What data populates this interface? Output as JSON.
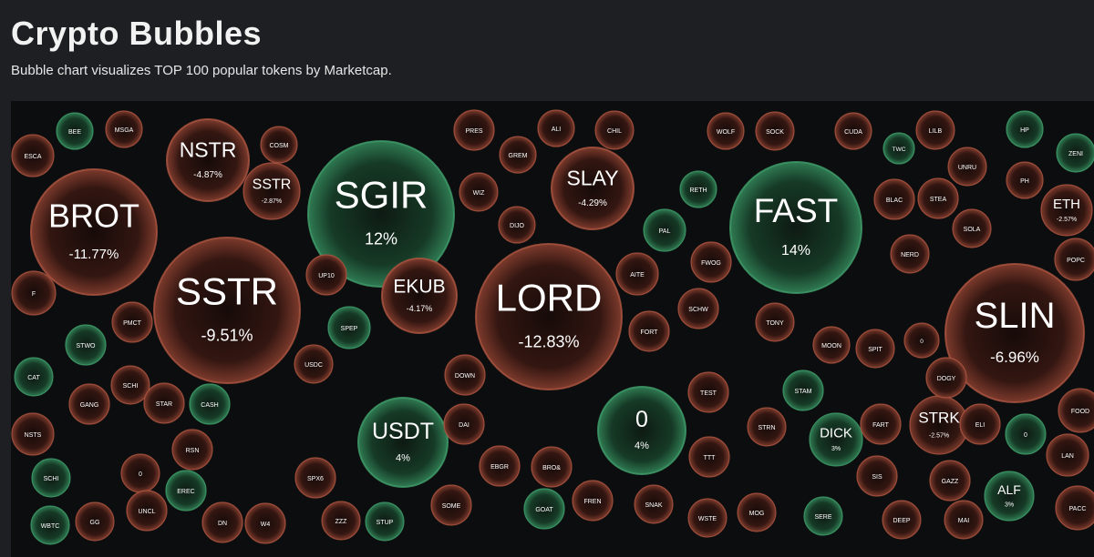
{
  "header": {
    "title": "Crypto Bubbles",
    "subtitle": "Bubble chart visualizes TOP 100 popular tokens by Marketcap."
  },
  "colors": {
    "up_fill": "#1f4a33",
    "up_stroke": "#3e9a68",
    "down_fill": "#3a1a15",
    "down_stroke": "#a8533f"
  },
  "chart_data": {
    "type": "bubble",
    "unit": "%",
    "tokens": [
      {
        "symbol": "BROT",
        "change": "-11.77%",
        "direction": "down"
      },
      {
        "symbol": "SSTR",
        "change": "-9.51%",
        "direction": "down"
      },
      {
        "symbol": "NSTR",
        "change": "-4.87%",
        "direction": "down"
      },
      {
        "symbol": "SSTR",
        "change": "-2.87%",
        "direction": "down"
      },
      {
        "symbol": "SGIR",
        "change": "12%",
        "direction": "up"
      },
      {
        "symbol": "EKUB",
        "change": "-4.17%",
        "direction": "down"
      },
      {
        "symbol": "LORD",
        "change": "-12.83%",
        "direction": "down"
      },
      {
        "symbol": "SLAY",
        "change": "-4.29%",
        "direction": "down"
      },
      {
        "symbol": "FAST",
        "change": "14%",
        "direction": "up"
      },
      {
        "symbol": "SLIN",
        "change": "-6.96%",
        "direction": "down"
      },
      {
        "symbol": "USDT",
        "change": "4%",
        "direction": "up"
      },
      {
        "symbol": "0",
        "change": "4%",
        "direction": "up"
      },
      {
        "symbol": "ETH",
        "change": "-2.57%",
        "direction": "down"
      },
      {
        "symbol": "STRK",
        "change": "-2.57%",
        "direction": "down"
      },
      {
        "symbol": "DICK",
        "change": "3%",
        "direction": "up"
      },
      {
        "symbol": "ALF",
        "change": "3%",
        "direction": "up"
      },
      {
        "symbol": "ESCA",
        "direction": "down"
      },
      {
        "symbol": "BEE",
        "direction": "up"
      },
      {
        "symbol": "MSGA",
        "direction": "down"
      },
      {
        "symbol": "COSM",
        "direction": "down"
      },
      {
        "symbol": "PRES",
        "direction": "down"
      },
      {
        "symbol": "ALI",
        "direction": "down"
      },
      {
        "symbol": "CHIL",
        "direction": "down"
      },
      {
        "symbol": "GREM",
        "direction": "down"
      },
      {
        "symbol": "WIZ",
        "direction": "down"
      },
      {
        "symbol": "DIJO",
        "direction": "down"
      },
      {
        "symbol": "WOLF",
        "direction": "down"
      },
      {
        "symbol": "SOCK",
        "direction": "down"
      },
      {
        "symbol": "CUDA",
        "direction": "down"
      },
      {
        "symbol": "TWC",
        "direction": "up"
      },
      {
        "symbol": "LILB",
        "direction": "down"
      },
      {
        "symbol": "HP",
        "direction": "up"
      },
      {
        "symbol": "ZENI",
        "direction": "up"
      },
      {
        "symbol": "UNRU",
        "direction": "down"
      },
      {
        "symbol": "PH",
        "direction": "down"
      },
      {
        "symbol": "RETH",
        "direction": "up"
      },
      {
        "symbol": "PAL",
        "direction": "up"
      },
      {
        "symbol": "BLAC",
        "direction": "down"
      },
      {
        "symbol": "STEA",
        "direction": "down"
      },
      {
        "symbol": "SOLA",
        "direction": "down"
      },
      {
        "symbol": "NERD",
        "direction": "down"
      },
      {
        "symbol": "POPC",
        "direction": "down"
      },
      {
        "symbol": "F",
        "direction": "down"
      },
      {
        "symbol": "UP10",
        "direction": "down"
      },
      {
        "symbol": "AITE",
        "direction": "down"
      },
      {
        "symbol": "FWOG",
        "direction": "down"
      },
      {
        "symbol": "SCHW",
        "direction": "down"
      },
      {
        "symbol": "TONY",
        "direction": "down"
      },
      {
        "symbol": "PMCT",
        "direction": "down"
      },
      {
        "symbol": "SPEP",
        "direction": "up"
      },
      {
        "symbol": "STWO",
        "direction": "up"
      },
      {
        "symbol": "USDC",
        "direction": "down"
      },
      {
        "symbol": "FORT",
        "direction": "down"
      },
      {
        "symbol": "MOON",
        "direction": "down"
      },
      {
        "symbol": "SPIT",
        "direction": "down"
      },
      {
        "symbol": "0",
        "direction": "down"
      },
      {
        "symbol": "CAT",
        "direction": "up"
      },
      {
        "symbol": "SCHI",
        "direction": "down"
      },
      {
        "symbol": "DOWN",
        "direction": "down"
      },
      {
        "symbol": "STAM",
        "direction": "up"
      },
      {
        "symbol": "DOGY",
        "direction": "down"
      },
      {
        "symbol": "GANG",
        "direction": "down"
      },
      {
        "symbol": "STAR",
        "direction": "down"
      },
      {
        "symbol": "CASH",
        "direction": "up"
      },
      {
        "symbol": "TEST",
        "direction": "down"
      },
      {
        "symbol": "FOOD",
        "direction": "down"
      },
      {
        "symbol": "NSTS",
        "direction": "down"
      },
      {
        "symbol": "DAI",
        "direction": "down"
      },
      {
        "symbol": "STRN",
        "direction": "down"
      },
      {
        "symbol": "FART",
        "direction": "down"
      },
      {
        "symbol": "ELI",
        "direction": "down"
      },
      {
        "symbol": "0",
        "direction": "up"
      },
      {
        "symbol": "RSN",
        "direction": "down"
      },
      {
        "symbol": "TTT",
        "direction": "down"
      },
      {
        "symbol": "SPX6",
        "direction": "down"
      },
      {
        "symbol": "EBGR",
        "direction": "down"
      },
      {
        "symbol": "BRO&",
        "direction": "down"
      },
      {
        "symbol": "LAN",
        "direction": "down"
      },
      {
        "symbol": "0",
        "direction": "down"
      },
      {
        "symbol": "SCHI",
        "direction": "up"
      },
      {
        "symbol": "SIS",
        "direction": "down"
      },
      {
        "symbol": "GAZZ",
        "direction": "down"
      },
      {
        "symbol": "EREC",
        "direction": "up"
      },
      {
        "symbol": "UNCL",
        "direction": "down"
      },
      {
        "symbol": "FREN",
        "direction": "down"
      },
      {
        "symbol": "SOME",
        "direction": "down"
      },
      {
        "symbol": "WBTC",
        "direction": "up"
      },
      {
        "symbol": "GG",
        "direction": "down"
      },
      {
        "symbol": "DN",
        "direction": "down"
      },
      {
        "symbol": "W4",
        "direction": "down"
      },
      {
        "symbol": "ZZZ",
        "direction": "down"
      },
      {
        "symbol": "STUP",
        "direction": "up"
      },
      {
        "symbol": "GOAT",
        "direction": "up"
      },
      {
        "symbol": "SNAK",
        "direction": "down"
      },
      {
        "symbol": "WSTE",
        "direction": "down"
      },
      {
        "symbol": "MOG",
        "direction": "down"
      },
      {
        "symbol": "SERE",
        "direction": "up"
      },
      {
        "symbol": "DEEP",
        "direction": "down"
      },
      {
        "symbol": "MAI",
        "direction": "down"
      },
      {
        "symbol": "PACC",
        "direction": "down"
      }
    ]
  }
}
